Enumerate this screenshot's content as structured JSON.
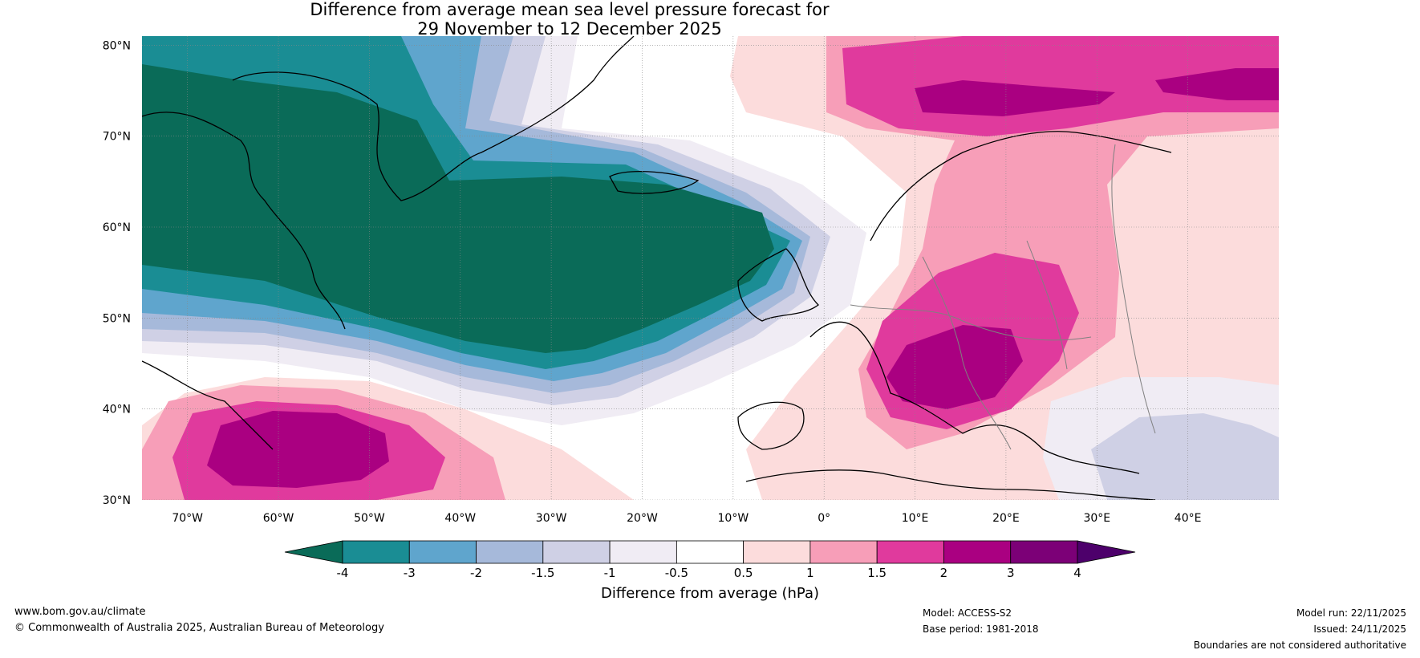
{
  "title": {
    "line1": "Difference from average mean sea level pressure forecast for",
    "line2": "29 November to 12 December 2025"
  },
  "map": {
    "lat_labels": [
      "80°N",
      "70°N",
      "60°N",
      "50°N",
      "40°N",
      "30°N"
    ],
    "lon_labels": [
      "70°W",
      "60°W",
      "50°W",
      "40°W",
      "30°W",
      "20°W",
      "10°W",
      "0°",
      "10°E",
      "20°E",
      "30°E",
      "40°E"
    ],
    "lat_values": [
      80,
      70,
      60,
      50,
      40,
      30
    ],
    "lon_values": [
      -70,
      -60,
      -50,
      -40,
      -30,
      -20,
      -10,
      0,
      10,
      20,
      30,
      40
    ],
    "lat_range": [
      30,
      81
    ],
    "lon_range": [
      -75,
      50
    ],
    "anomaly_centres": [
      {
        "name": "low-north-atlantic",
        "lon": -28,
        "lat": 57,
        "value": -4
      },
      {
        "name": "low-labrador-greenland",
        "lon": -62,
        "lat": 64,
        "value": -4
      },
      {
        "name": "high-subtropical-atlantic",
        "lon": -57,
        "lat": 36,
        "value": 3
      },
      {
        "name": "high-central-europe",
        "lon": 15,
        "lat": 44,
        "value": 3
      },
      {
        "name": "high-barents-sea",
        "lon": 30,
        "lat": 75,
        "value": 3
      }
    ]
  },
  "colorbar": {
    "tick_labels": [
      "-4",
      "-3",
      "-2",
      "-1.5",
      "-1",
      "-0.5",
      "0.5",
      "1",
      "1.5",
      "2",
      "3",
      "4"
    ],
    "colors": [
      "#0a6b58",
      "#1a8d94",
      "#5fa5cd",
      "#a6b9da",
      "#cfd0e5",
      "#f0ecf4",
      "#ffffff",
      "#fcdcdc",
      "#f79eb8",
      "#e03a9d",
      "#aa0081",
      "#7c0077",
      "#4d006b"
    ],
    "label": "Difference from average (hPa)"
  },
  "footer": {
    "website": "www.bom.gov.au/climate",
    "copyright": "© Commonwealth of Australia 2025, Australian Bureau of Meteorology",
    "model": "Model: ACCESS-S2",
    "base_period": "Base period: 1981-2018",
    "model_run": "Model run: 22/11/2025",
    "issued": "Issued: 24/11/2025",
    "disclaimer": "Boundaries are not considered authoritative"
  }
}
